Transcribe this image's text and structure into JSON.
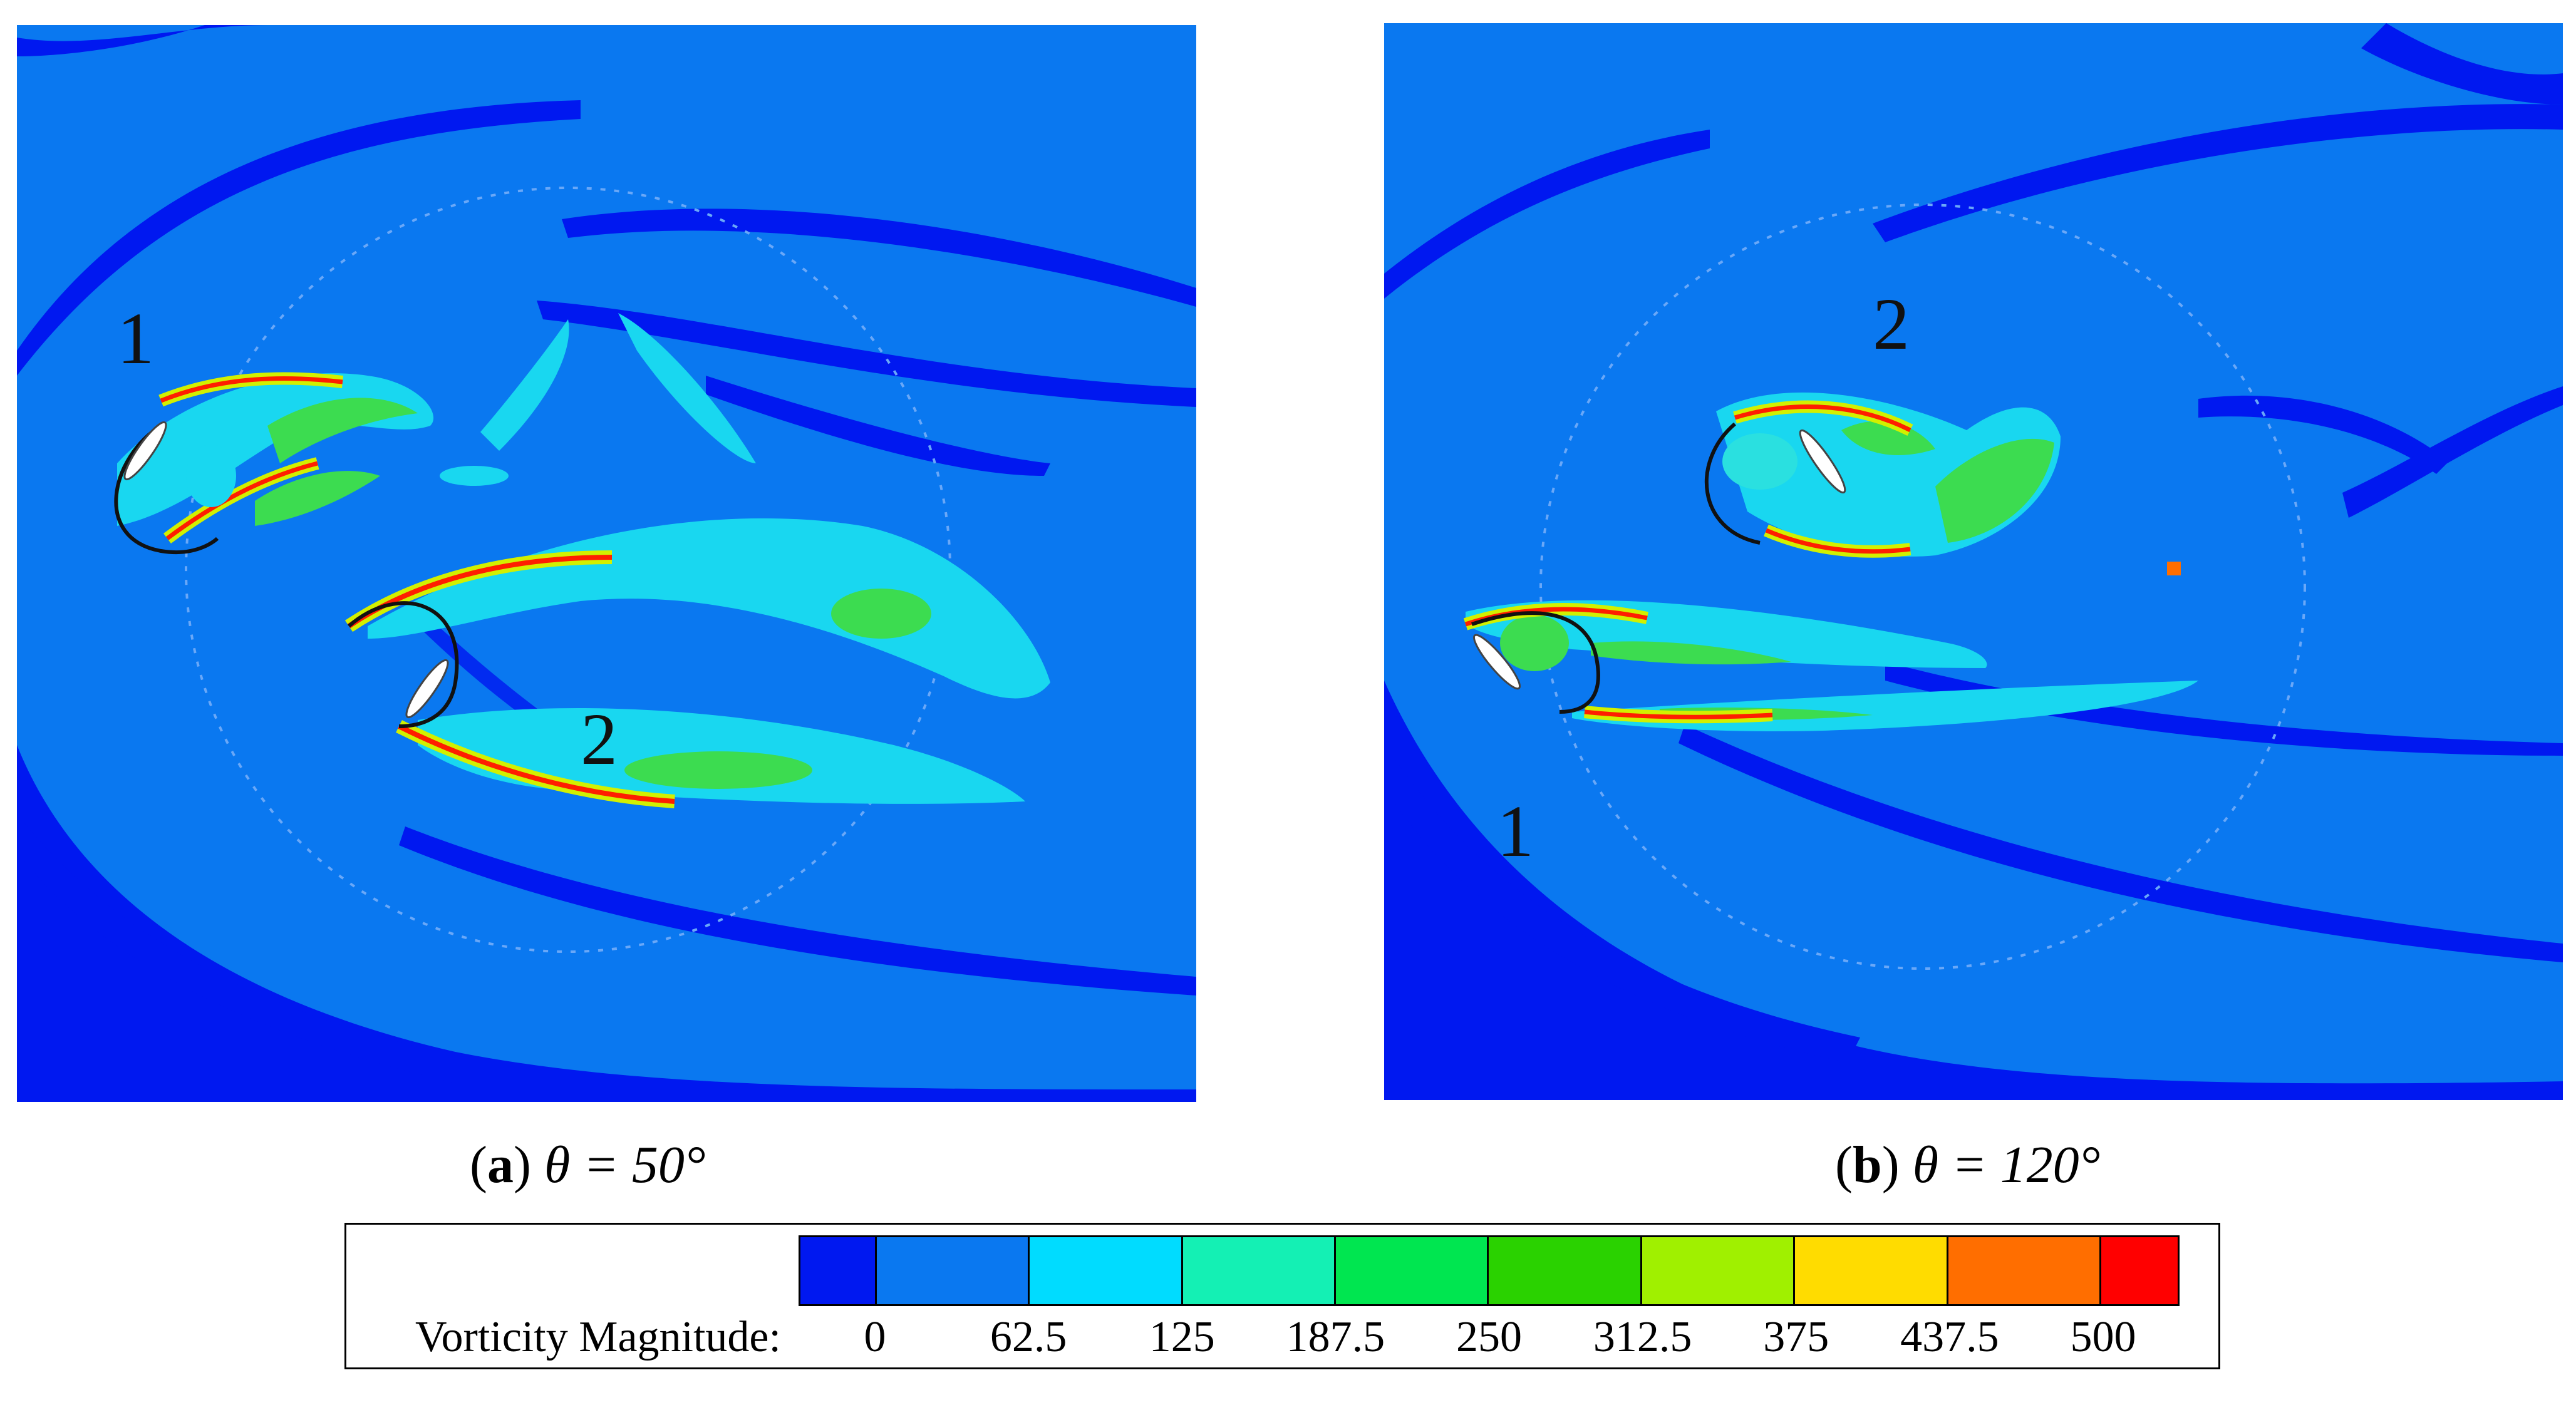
{
  "panels": [
    {
      "caption_letter": "a",
      "caption_rest": "θ = 50°",
      "labels": [
        "1",
        "2"
      ]
    },
    {
      "caption_letter": "b",
      "caption_rest": "θ = 120°",
      "labels": [
        "2",
        "1"
      ]
    }
  ],
  "legend": {
    "title": "Vorticity Magnitude:",
    "ticks": [
      "0",
      "62.5",
      "125",
      "187.5",
      "250",
      "312.5",
      "375",
      "437.5",
      "500"
    ],
    "colors": [
      "#0018f0",
      "#0a78f0",
      "#00dcff",
      "#14f0b4",
      "#00e650",
      "#2ad200",
      "#a0f000",
      "#ffdc00",
      "#ff6e00",
      "#ff0000"
    ]
  },
  "colors": {
    "background": "#0a78f0",
    "low_band": "#0018f0",
    "cyan": "#19d7f0",
    "green": "#3cdc50",
    "yellow": "#d2f000",
    "red": "#ff1e00",
    "blade": "#ffffff"
  }
}
